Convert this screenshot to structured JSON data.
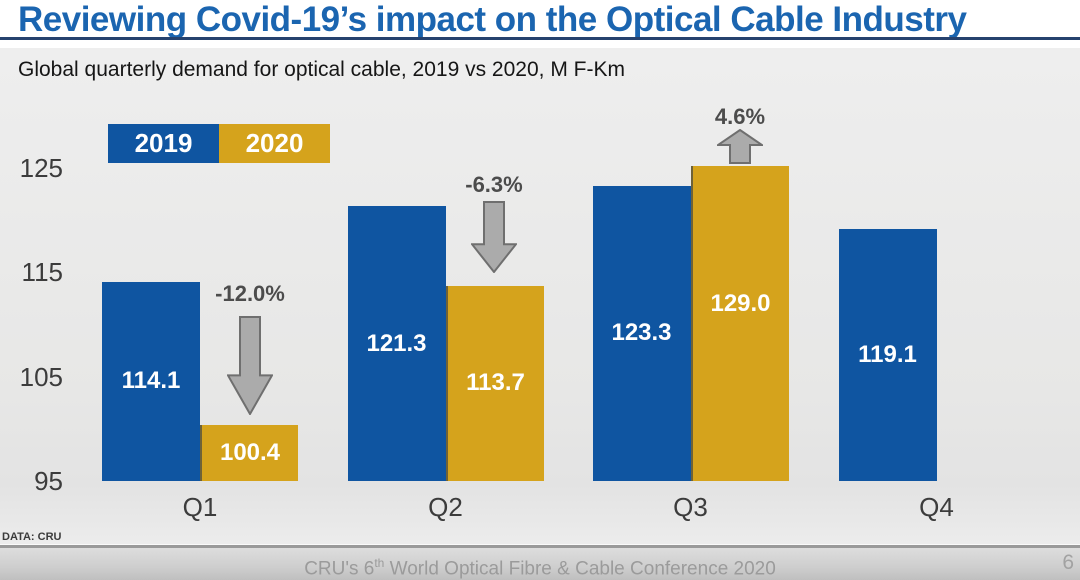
{
  "title": "Reviewing Covid-19’s impact on the Optical Cable Industry",
  "subtitle": "Global quarterly demand for optical cable, 2019 vs 2020, M F-Km",
  "legend": {
    "items": [
      {
        "label": "2019",
        "color": "#0F55A1"
      },
      {
        "label": "2020",
        "color": "#D5A31C"
      }
    ]
  },
  "chart_data": {
    "type": "bar",
    "title": "Global quarterly demand for optical cable, 2019 vs 2020, M F-Km",
    "unit": "M F-Km",
    "categories": [
      "Q1",
      "Q2",
      "Q3",
      "Q4"
    ],
    "series": [
      {
        "name": "2019",
        "color": "#0F55A1",
        "values": [
          114.1,
          121.3,
          123.3,
          119.1
        ],
        "value_labels": [
          "114.1",
          "121.3",
          "123.3",
          "119.1"
        ]
      },
      {
        "name": "2020",
        "color": "#D5A31C",
        "values": [
          100.4,
          113.7,
          129.0,
          null
        ],
        "value_labels": [
          "100.4",
          "113.7",
          "129.0",
          null
        ]
      }
    ],
    "y_ticks": [
      125,
      115,
      105,
      95
    ],
    "ylim": [
      95,
      125.3
    ],
    "grid": false,
    "legend_position": "top-left",
    "bar_value_labels_shown": true,
    "annotations": [
      {
        "category": "Q1",
        "label": "-12.0%",
        "direction": "down"
      },
      {
        "category": "Q2",
        "label": "-6.3%",
        "direction": "down"
      },
      {
        "category": "Q3",
        "label": "4.6%",
        "direction": "up"
      }
    ],
    "annotation_colors": {
      "arrow_fill": "#ababab",
      "arrow_stroke": "#6f6f6f",
      "text": "#4c4c4c"
    }
  },
  "footer": {
    "source": "DATA: CRU",
    "conference_prefix": "CRU's 6",
    "conference_sup": "th",
    "conference_suffix": " World Optical Fibre & Cable Conference 2020",
    "page": "6"
  }
}
